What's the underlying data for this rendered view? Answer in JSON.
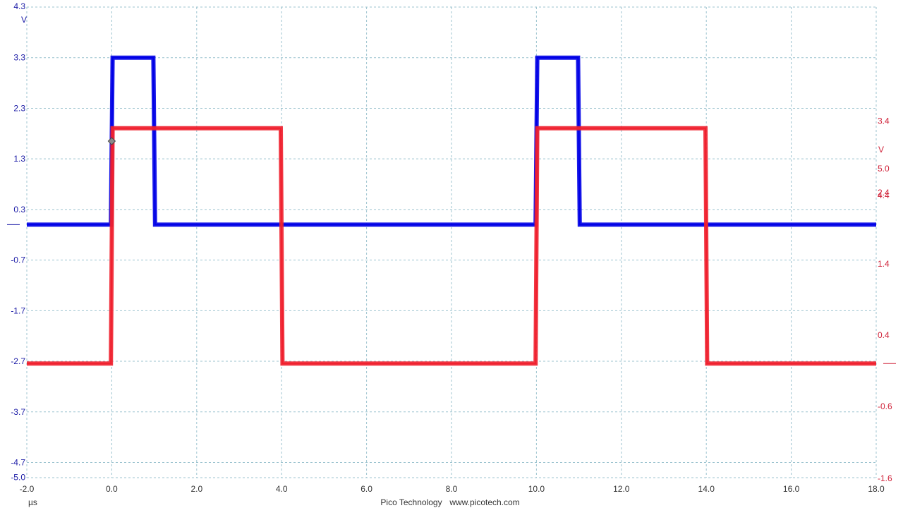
{
  "chart_data": {
    "type": "line",
    "x_unit": "µs",
    "xlim": [
      -2.0,
      18.0
    ],
    "x_ticks": [
      "-2.0",
      "0.0",
      "2.0",
      "4.0",
      "6.0",
      "8.0",
      "10.0",
      "12.0",
      "14.0",
      "16.0",
      "18.0"
    ],
    "grid": true,
    "left_axis": {
      "unit": "V",
      "color": "#1a1aa6",
      "ylim": [
        -5.0,
        4.3
      ],
      "ticks": [
        "4.3",
        "3.3",
        "2.3",
        "1.3",
        "0.3",
        "-0.7",
        "-1.7",
        "-2.7",
        "-3.7",
        "-4.7",
        "-5.0"
      ]
    },
    "right_axis": {
      "unit": "V",
      "color": "#d0233a",
      "ylim": [
        -1.6,
        5.0
      ],
      "ticks": [
        "5.0",
        "4.4",
        "3.4",
        "2.4",
        "1.4",
        "0.4",
        "-0.6",
        "-1.6"
      ]
    },
    "series": [
      {
        "axis": "left",
        "color": "#0000e6",
        "x": [
          -2.0,
          -0.02,
          0.02,
          0.98,
          1.02,
          9.98,
          10.02,
          10.98,
          11.02,
          18.0
        ],
        "y": [
          0.0,
          0.0,
          3.3,
          3.3,
          0.0,
          0.0,
          3.3,
          3.3,
          0.0,
          0.0
        ]
      },
      {
        "axis": "right",
        "color": "#f0202e",
        "x": [
          -2.0,
          -0.02,
          0.02,
          3.98,
          4.02,
          9.98,
          10.02,
          13.98,
          14.02,
          18.0
        ],
        "y": [
          0.0,
          0.0,
          3.3,
          3.3,
          0.0,
          0.0,
          3.3,
          3.3,
          0.0,
          0.0
        ]
      }
    ],
    "trigger": {
      "x": 0.0,
      "y": 1.65,
      "axis": "left"
    }
  },
  "footer": {
    "brand": "Pico Technology",
    "url": "www.picotech.com"
  }
}
